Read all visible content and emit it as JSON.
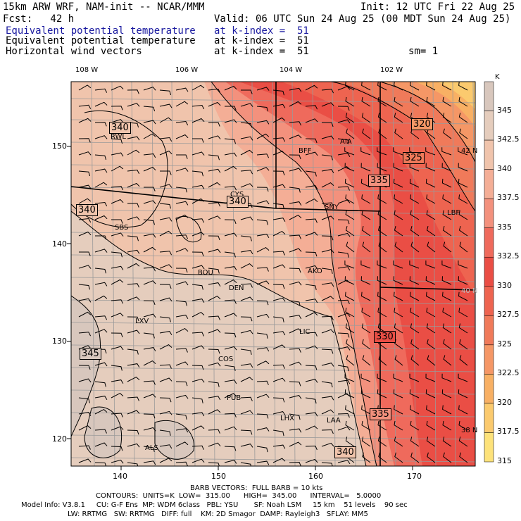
{
  "header": {
    "line1_left": "15km ARW WRF, NAM-init -- NCAR/MMM",
    "line1_right": "Init: 12 UTC Fri 22 Aug 25",
    "line2_left": "Fcst:   42 h",
    "line2_right": "Valid: 06 UTC Sun 24 Aug 25 (00 MDT Sun 24 Aug 25)",
    "field1_name": "Equivalent potential temperature",
    "field1_level": "at k-index =  51",
    "field2_name": "Equivalent potential temperature",
    "field2_level": "at k-index =  51",
    "field3_name": "Horizontal wind vectors",
    "field3_level": "at k-index =  51",
    "smoothing": "sm= 1"
  },
  "map": {
    "lon_labels": [
      "108 W",
      "106 W",
      "104 W",
      "102 W"
    ],
    "lat_labels": [
      "42 N",
      "40 N",
      "38 N"
    ],
    "grid_x_ticks": [
      "140",
      "150",
      "160",
      "170"
    ],
    "grid_y_ticks": [
      "150",
      "140",
      "130",
      "120"
    ],
    "stations": [
      "RWL",
      "CYS",
      "SBS",
      "BFF",
      "AIA",
      "SNY",
      "LBF",
      "BOU",
      "DEN",
      "AKO",
      "LXV",
      "LIC",
      "COS",
      "PUB",
      "LHX",
      "LAA",
      "ALS"
    ],
    "contour_labels": [
      "340",
      "340",
      "340",
      "320",
      "325",
      "335",
      "345",
      "330",
      "335",
      "340"
    ],
    "colors": {
      "c315": "#fde27a",
      "c317": "#fbca6e",
      "c320": "#f8b064",
      "c322": "#f59766",
      "c325": "#f07a5a",
      "c327": "#ee6450",
      "c330": "#ea4e45",
      "c332": "#ef6a5c",
      "c335": "#f3917d",
      "c337": "#f4ae96",
      "c340": "#f0c4ac",
      "c342": "#e5cdbd",
      "c345": "#d8c7bd",
      "bg": "#e9c7b2"
    }
  },
  "colorbar": {
    "unit": "K",
    "labels": [
      "345",
      "342.5",
      "340",
      "337.5",
      "335",
      "332.5",
      "330",
      "327.5",
      "325",
      "322.5",
      "320",
      "317.5",
      "315"
    ]
  },
  "footer": {
    "barb": "BARB VECTORS:  FULL BARB = 10 kts",
    "contours": "CONTOURS:  UNITS=K  LOW=  315.00      HIGH=  345.00      INTERVAL=   5.0000",
    "model1": "Model Info: V3.8.1     CU: G-F Ens  MP: WDM 6class   PBL: YSU       SF: Noah LSM     15 km    51 levels    90 sec",
    "model2": "LW: RRTMG   SW: RRTMG   DIFF: full    KM: 2D Smagor  DAMP: Rayleigh3   SFLAY: MM5"
  }
}
